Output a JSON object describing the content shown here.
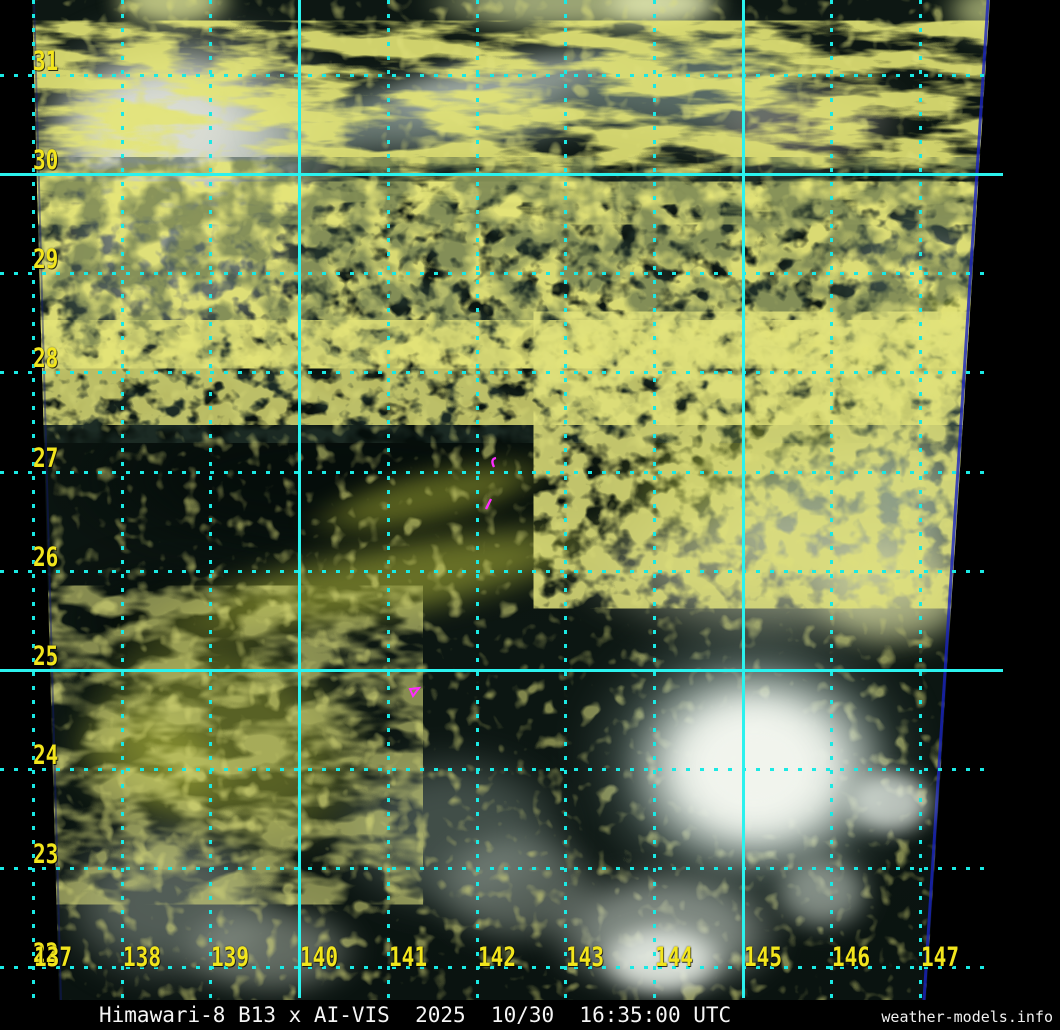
{
  "map": {
    "lat_labels": [
      "31",
      "30",
      "29",
      "28",
      "27",
      "26",
      "25",
      "24",
      "23",
      "22"
    ],
    "lon_labels": [
      "137",
      "138",
      "139",
      "140",
      "141",
      "142",
      "143",
      "144",
      "145",
      "146",
      "147"
    ],
    "solid_lat_labels": [
      "30",
      "25"
    ],
    "solid_lon_labels": [
      "140",
      "145"
    ],
    "grid_dotted_color": "#1ae9e4",
    "grid_solid_color": "#2bf2ee",
    "label_color": "#f2e51c",
    "island_marker_color": "#ff2bff",
    "swath_edge_color": "#1a23c0"
  },
  "caption": {
    "text": "Himawari-8 B13 x AI-VIS  2025  10/30  16:35:00 UTC",
    "satellite": "Himawari-8",
    "band": "B13",
    "product": "AI-VIS",
    "date": "2025 10/30",
    "time": "16:35:00 UTC",
    "watermark": "weather-models.info"
  }
}
